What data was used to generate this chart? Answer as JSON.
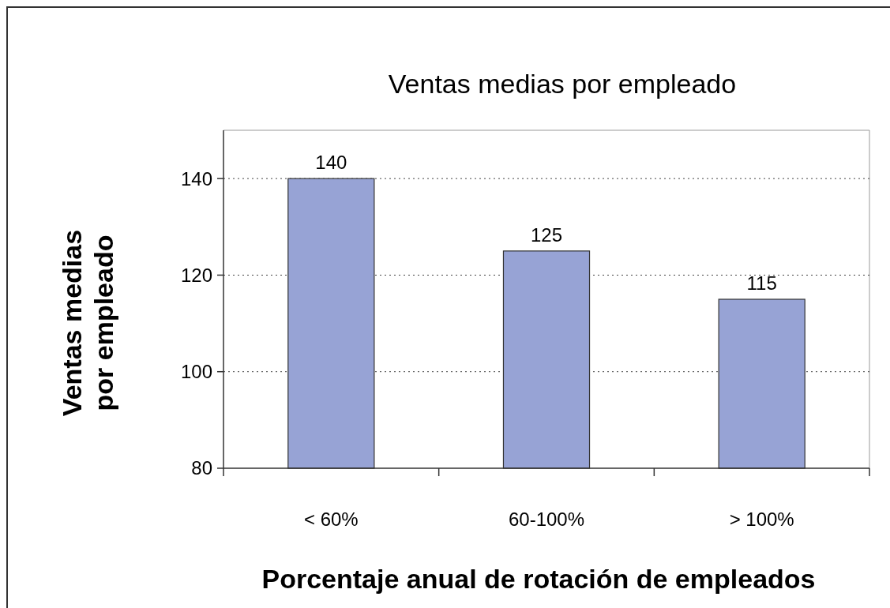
{
  "chart_data": {
    "type": "bar",
    "title": "Ventas medias por empleado",
    "xlabel": "Porcentaje anual de rotación de empleados",
    "ylabel": "Ventas medias por empleado",
    "categories": [
      "< 60%",
      "60-100%",
      "> 100%"
    ],
    "values": [
      140,
      125,
      115
    ],
    "color": "#97a3d5",
    "ylim": [
      80,
      150
    ],
    "yticks": [
      80,
      100,
      120,
      140
    ],
    "grid": "y",
    "data_labels": true
  }
}
